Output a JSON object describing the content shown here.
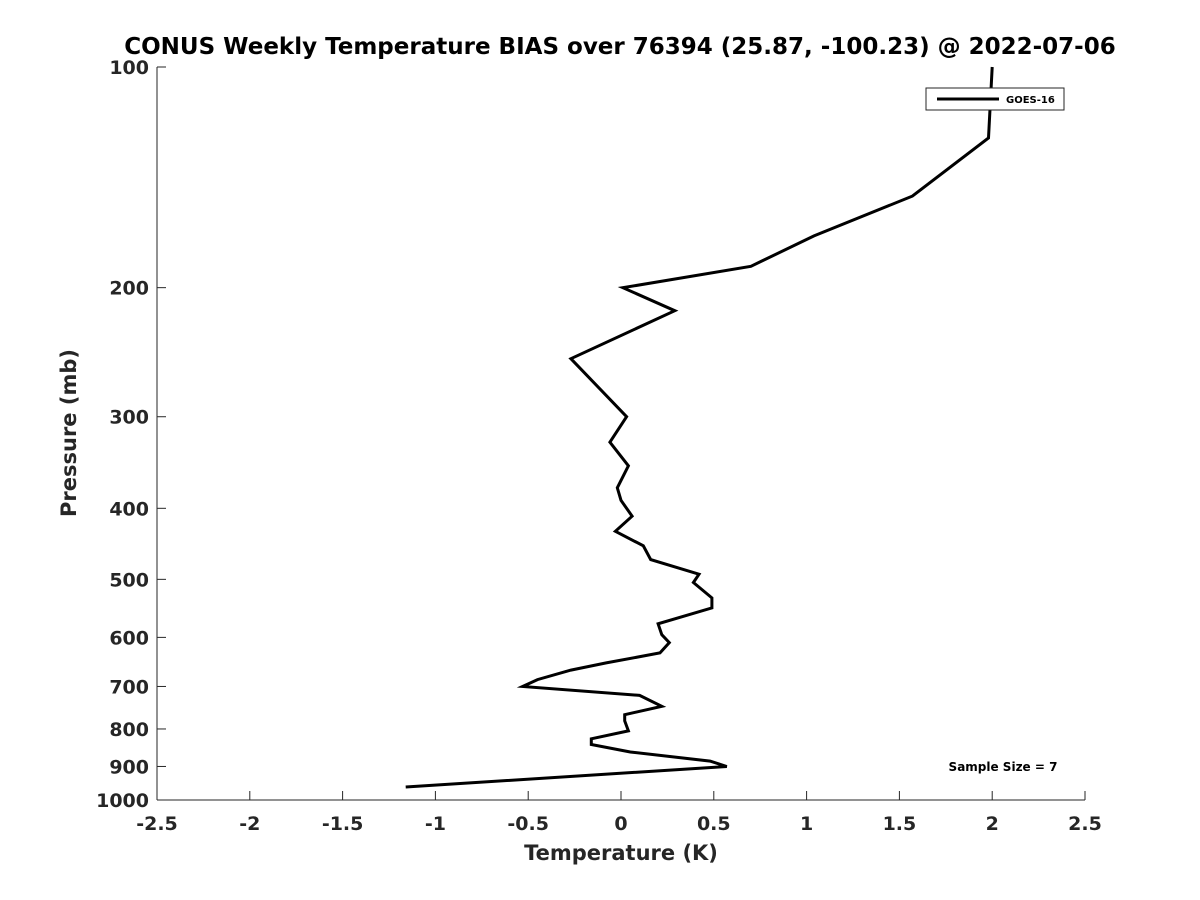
{
  "chart_data": {
    "type": "line",
    "title": "CONUS Weekly Temperature BIAS over 76394 (25.87, -100.23) @ 2022-07-06",
    "xlabel": "Temperature (K)",
    "ylabel": "Pressure (mb)",
    "xlim": [
      -2.5,
      2.5
    ],
    "ylim": [
      1000,
      100
    ],
    "y_scale": "log",
    "x_ticks": [
      -2.5,
      -2,
      -1.5,
      -1,
      -0.5,
      0,
      0.5,
      1,
      1.5,
      2,
      2.5
    ],
    "x_tick_labels": [
      "-2.5",
      "-2",
      "-1.5",
      "-1",
      "-0.5",
      "0",
      "0.5",
      "1",
      "1.5",
      "2",
      "2.5"
    ],
    "y_ticks": [
      100,
      200,
      300,
      400,
      500,
      600,
      700,
      800,
      900,
      1000
    ],
    "y_tick_labels": [
      "100",
      "200",
      "300",
      "400",
      "500",
      "600",
      "700",
      "800",
      "900",
      "1000"
    ],
    "legend_position": "top-right",
    "series": [
      {
        "name": "GOES-16",
        "color": "#000000",
        "points": [
          {
            "x": 2.0,
            "p": 100
          },
          {
            "x": 1.98,
            "p": 125
          },
          {
            "x": 1.57,
            "p": 150
          },
          {
            "x": 1.04,
            "p": 170
          },
          {
            "x": 0.7,
            "p": 187
          },
          {
            "x": 0.01,
            "p": 200
          },
          {
            "x": 0.29,
            "p": 215
          },
          {
            "x": -0.27,
            "p": 250
          },
          {
            "x": 0.03,
            "p": 300
          },
          {
            "x": -0.06,
            "p": 325
          },
          {
            "x": 0.04,
            "p": 350
          },
          {
            "x": -0.02,
            "p": 375
          },
          {
            "x": 0.0,
            "p": 390
          },
          {
            "x": 0.06,
            "p": 410
          },
          {
            "x": -0.03,
            "p": 430
          },
          {
            "x": 0.12,
            "p": 450
          },
          {
            "x": 0.16,
            "p": 470
          },
          {
            "x": 0.42,
            "p": 492
          },
          {
            "x": 0.39,
            "p": 505
          },
          {
            "x": 0.49,
            "p": 530
          },
          {
            "x": 0.49,
            "p": 547
          },
          {
            "x": 0.2,
            "p": 575
          },
          {
            "x": 0.22,
            "p": 595
          },
          {
            "x": 0.26,
            "p": 610
          },
          {
            "x": 0.21,
            "p": 630
          },
          {
            "x": -0.08,
            "p": 650
          },
          {
            "x": -0.27,
            "p": 665
          },
          {
            "x": -0.45,
            "p": 685
          },
          {
            "x": -0.53,
            "p": 700
          },
          {
            "x": 0.1,
            "p": 720
          },
          {
            "x": 0.22,
            "p": 745
          },
          {
            "x": 0.02,
            "p": 765
          },
          {
            "x": 0.02,
            "p": 780
          },
          {
            "x": 0.04,
            "p": 805
          },
          {
            "x": -0.16,
            "p": 825
          },
          {
            "x": -0.16,
            "p": 840
          },
          {
            "x": 0.05,
            "p": 860
          },
          {
            "x": 0.48,
            "p": 885
          },
          {
            "x": 0.57,
            "p": 900
          },
          {
            "x": -1.16,
            "p": 960
          }
        ]
      }
    ],
    "annotations": [
      {
        "text": "Sample Size = 7",
        "position": "bottom-right"
      }
    ]
  }
}
